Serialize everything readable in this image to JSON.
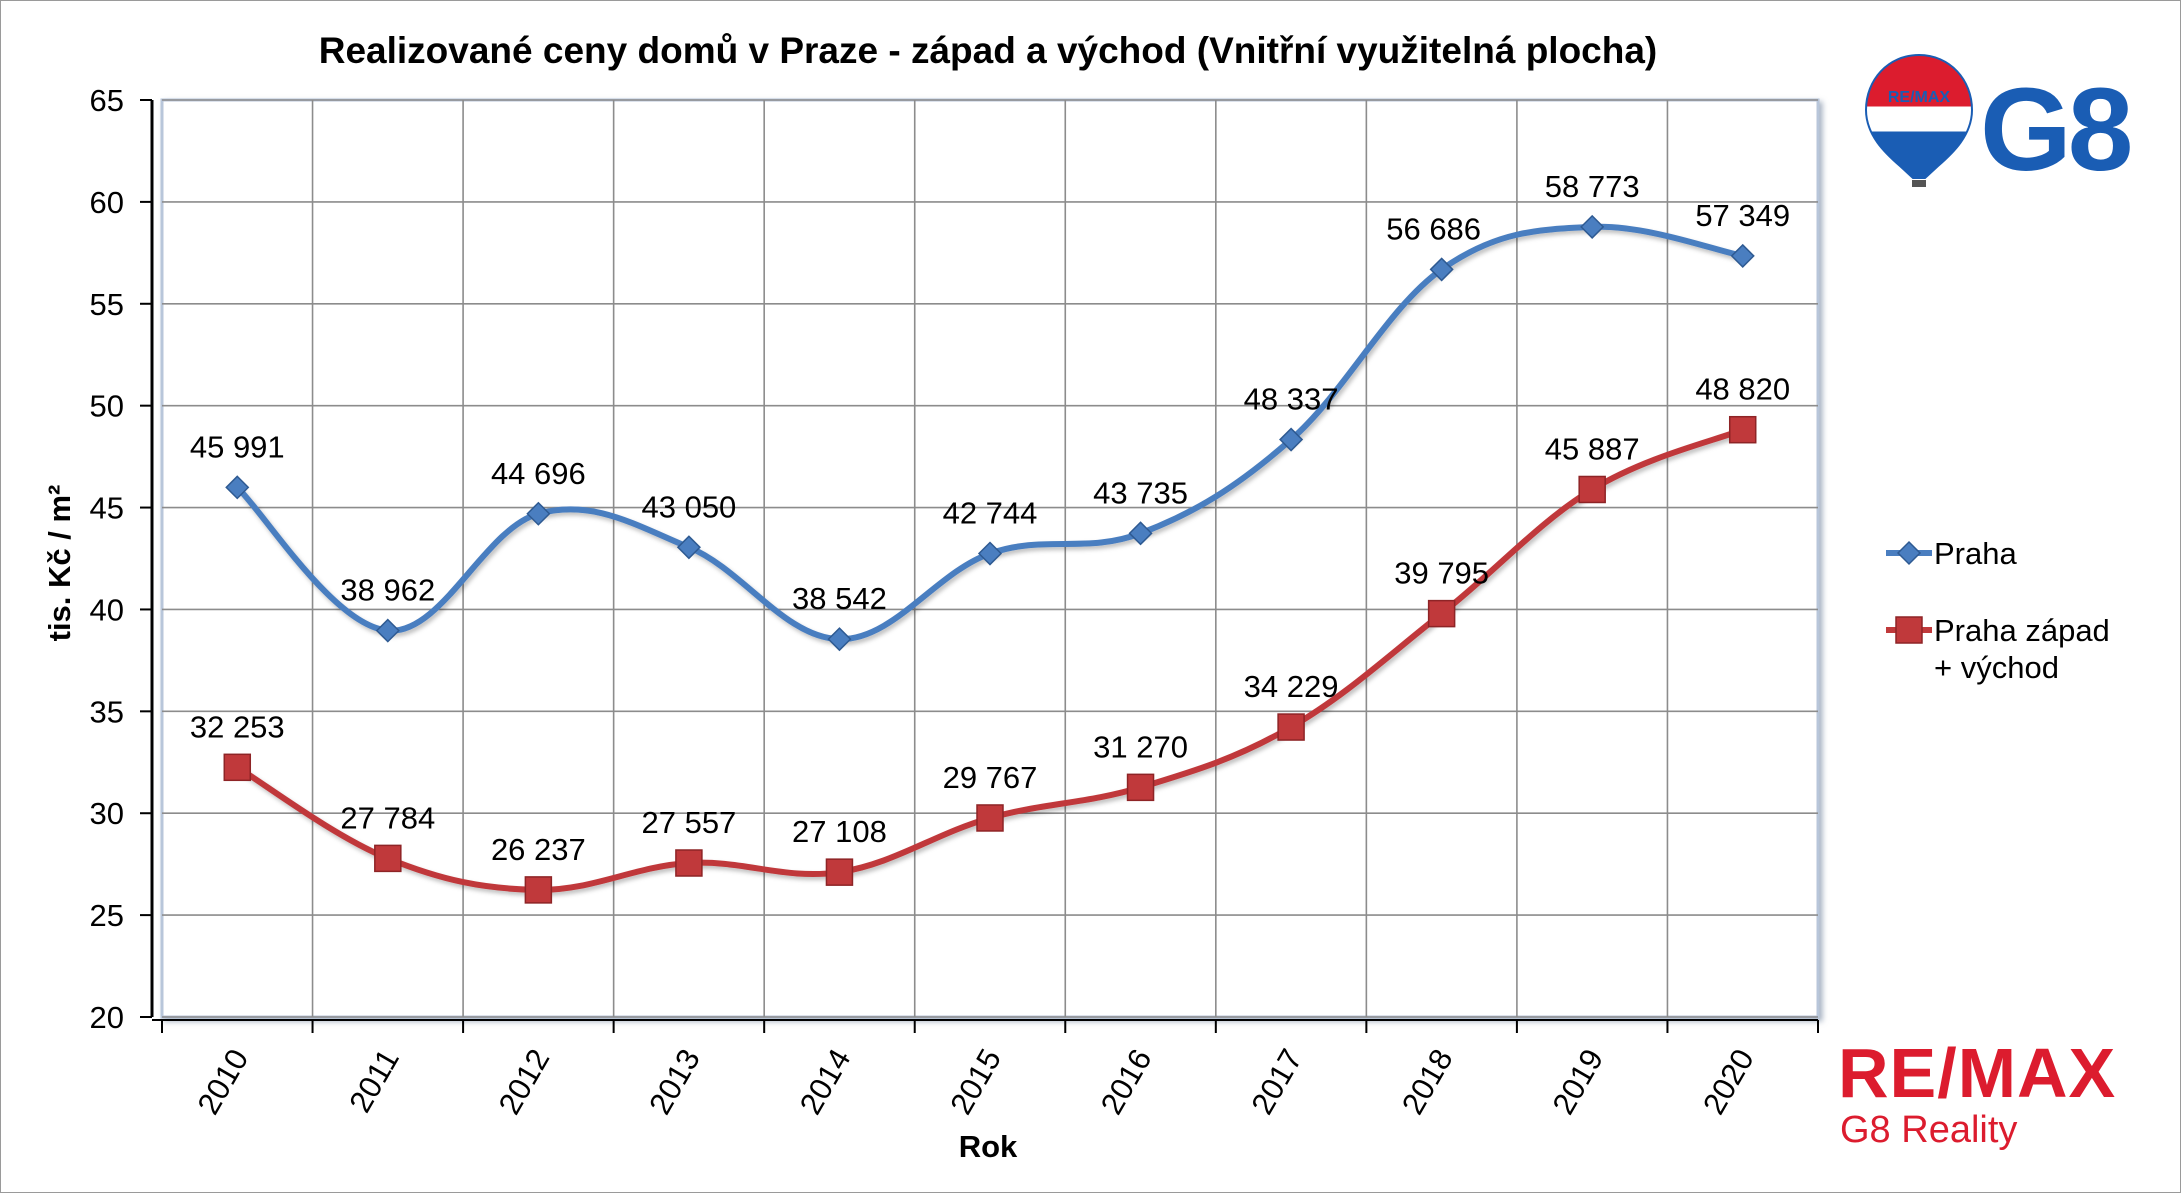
{
  "chart_data": {
    "type": "line",
    "title": "Realizované ceny domů v Praze - západ a východ (Vnitřní využitelná plocha)",
    "xlabel": "Rok",
    "ylabel": "tis. Kč / m²",
    "ylim": [
      20,
      65
    ],
    "ytick_step": 5,
    "yticks": [
      "20",
      "25",
      "30",
      "35",
      "40",
      "45",
      "50",
      "55",
      "60",
      "65"
    ],
    "categories": [
      "2010",
      "2011",
      "2012",
      "2013",
      "2014",
      "2015",
      "2016",
      "2017",
      "2018",
      "2019",
      "2020"
    ],
    "grid": true,
    "legend_position": "right",
    "series": [
      {
        "name": "Praha",
        "color": "#4a7ec0",
        "marker": "diamond",
        "values": [
          45.991,
          38.962,
          44.696,
          43.05,
          38.542,
          42.744,
          43.735,
          48.337,
          56.686,
          58.773,
          57.349
        ],
        "labels": [
          "45 991",
          "38 962",
          "44 696",
          "43 050",
          "38 542",
          "42 744",
          "43 735",
          "48 337",
          "56 686",
          "58 773",
          "57 349"
        ]
      },
      {
        "name": "Praha západ\n+ východ",
        "name_lines": [
          "Praha západ",
          "+ východ"
        ],
        "color": "#c0393b",
        "marker": "square",
        "values": [
          32.253,
          27.784,
          26.237,
          27.557,
          27.108,
          29.767,
          31.27,
          34.229,
          39.795,
          45.887,
          48.82
        ],
        "labels": [
          "32 253",
          "27 784",
          "26 237",
          "27 557",
          "27 108",
          "29 767",
          "31 270",
          "34 229",
          "39 795",
          "45 887",
          "48 820"
        ]
      }
    ]
  },
  "branding": {
    "balloon_text": "RE/MAX",
    "logo_text": "G8",
    "remax_text": "RE/MAX",
    "company_text": "G8 Reality",
    "colors": {
      "blue": "#1a5db4",
      "red": "#dc1c2e"
    }
  }
}
